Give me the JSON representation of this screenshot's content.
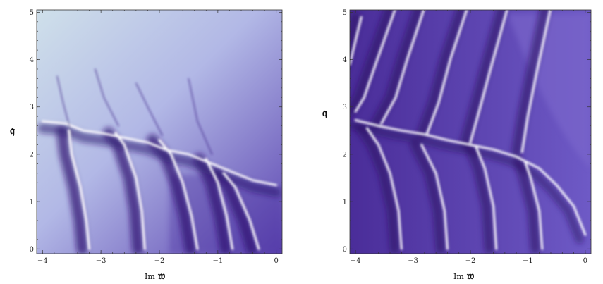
{
  "chart_data": [
    {
      "type": "heatmap",
      "panel": "left",
      "xlabel_prefix": "Im",
      "xlabel_symbol": "𝔴",
      "ylabel": "𝔮",
      "xlim": [
        -4.1,
        0.1
      ],
      "ylim": [
        -0.1,
        5.05
      ],
      "xticks": [
        -4,
        -3,
        -2,
        -1,
        0
      ],
      "yticks": [
        0,
        1,
        2,
        3,
        4,
        5
      ],
      "colors": {
        "low": "#3b1a7a",
        "mid": "#8f80d8",
        "high": "#ffffff",
        "bg": "#c8d6e6"
      }
    },
    {
      "type": "heatmap",
      "panel": "right",
      "xlabel_prefix": "Im",
      "xlabel_symbol": "𝔴",
      "ylabel": "𝔮",
      "xlim": [
        -4.1,
        0.1
      ],
      "ylim": [
        -0.1,
        5.05
      ],
      "xticks": [
        -4,
        -3,
        -2,
        -1,
        0
      ],
      "yticks": [
        0,
        1,
        2,
        3,
        4,
        5
      ],
      "colors": {
        "low": "#3b1a7a",
        "mid": "#6a54c0",
        "high": "#ffffff",
        "bg": "#6a54c0"
      }
    }
  ]
}
